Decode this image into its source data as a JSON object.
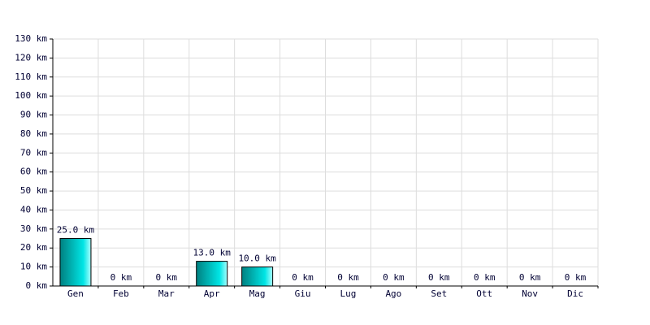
{
  "chart_data": {
    "type": "bar",
    "categories": [
      "Gen",
      "Feb",
      "Mar",
      "Apr",
      "Mag",
      "Giu",
      "Lug",
      "Ago",
      "Set",
      "Ott",
      "Nov",
      "Dic"
    ],
    "values": [
      25,
      0,
      0,
      13,
      10,
      0,
      0,
      0,
      0,
      0,
      0,
      0
    ],
    "value_labels": [
      "25.0 km",
      "0 km",
      "0 km",
      "13.0 km",
      "10.0 km",
      "0 km",
      "0 km",
      "0 km",
      "0 km",
      "0 km",
      "0 km",
      "0 km"
    ],
    "color": "#00e5e5",
    "ylim": [
      0,
      130
    ],
    "yticks": [
      {
        "value": 0,
        "label": "0 km"
      },
      {
        "value": 10,
        "label": "10 km"
      },
      {
        "value": 20,
        "label": "20 km"
      },
      {
        "value": 30,
        "label": "30 km"
      },
      {
        "value": 40,
        "label": "40 km"
      },
      {
        "value": 50,
        "label": "50 km"
      },
      {
        "value": 60,
        "label": "60 km"
      },
      {
        "value": 70,
        "label": "70 km"
      },
      {
        "value": 80,
        "label": "80 km"
      },
      {
        "value": 90,
        "label": "90 km"
      },
      {
        "value": 100,
        "label": "100 km"
      },
      {
        "value": 110,
        "label": "110 km"
      },
      {
        "value": 120,
        "label": "120 km"
      },
      {
        "value": 130,
        "label": "130 km"
      }
    ],
    "grid": true
  }
}
